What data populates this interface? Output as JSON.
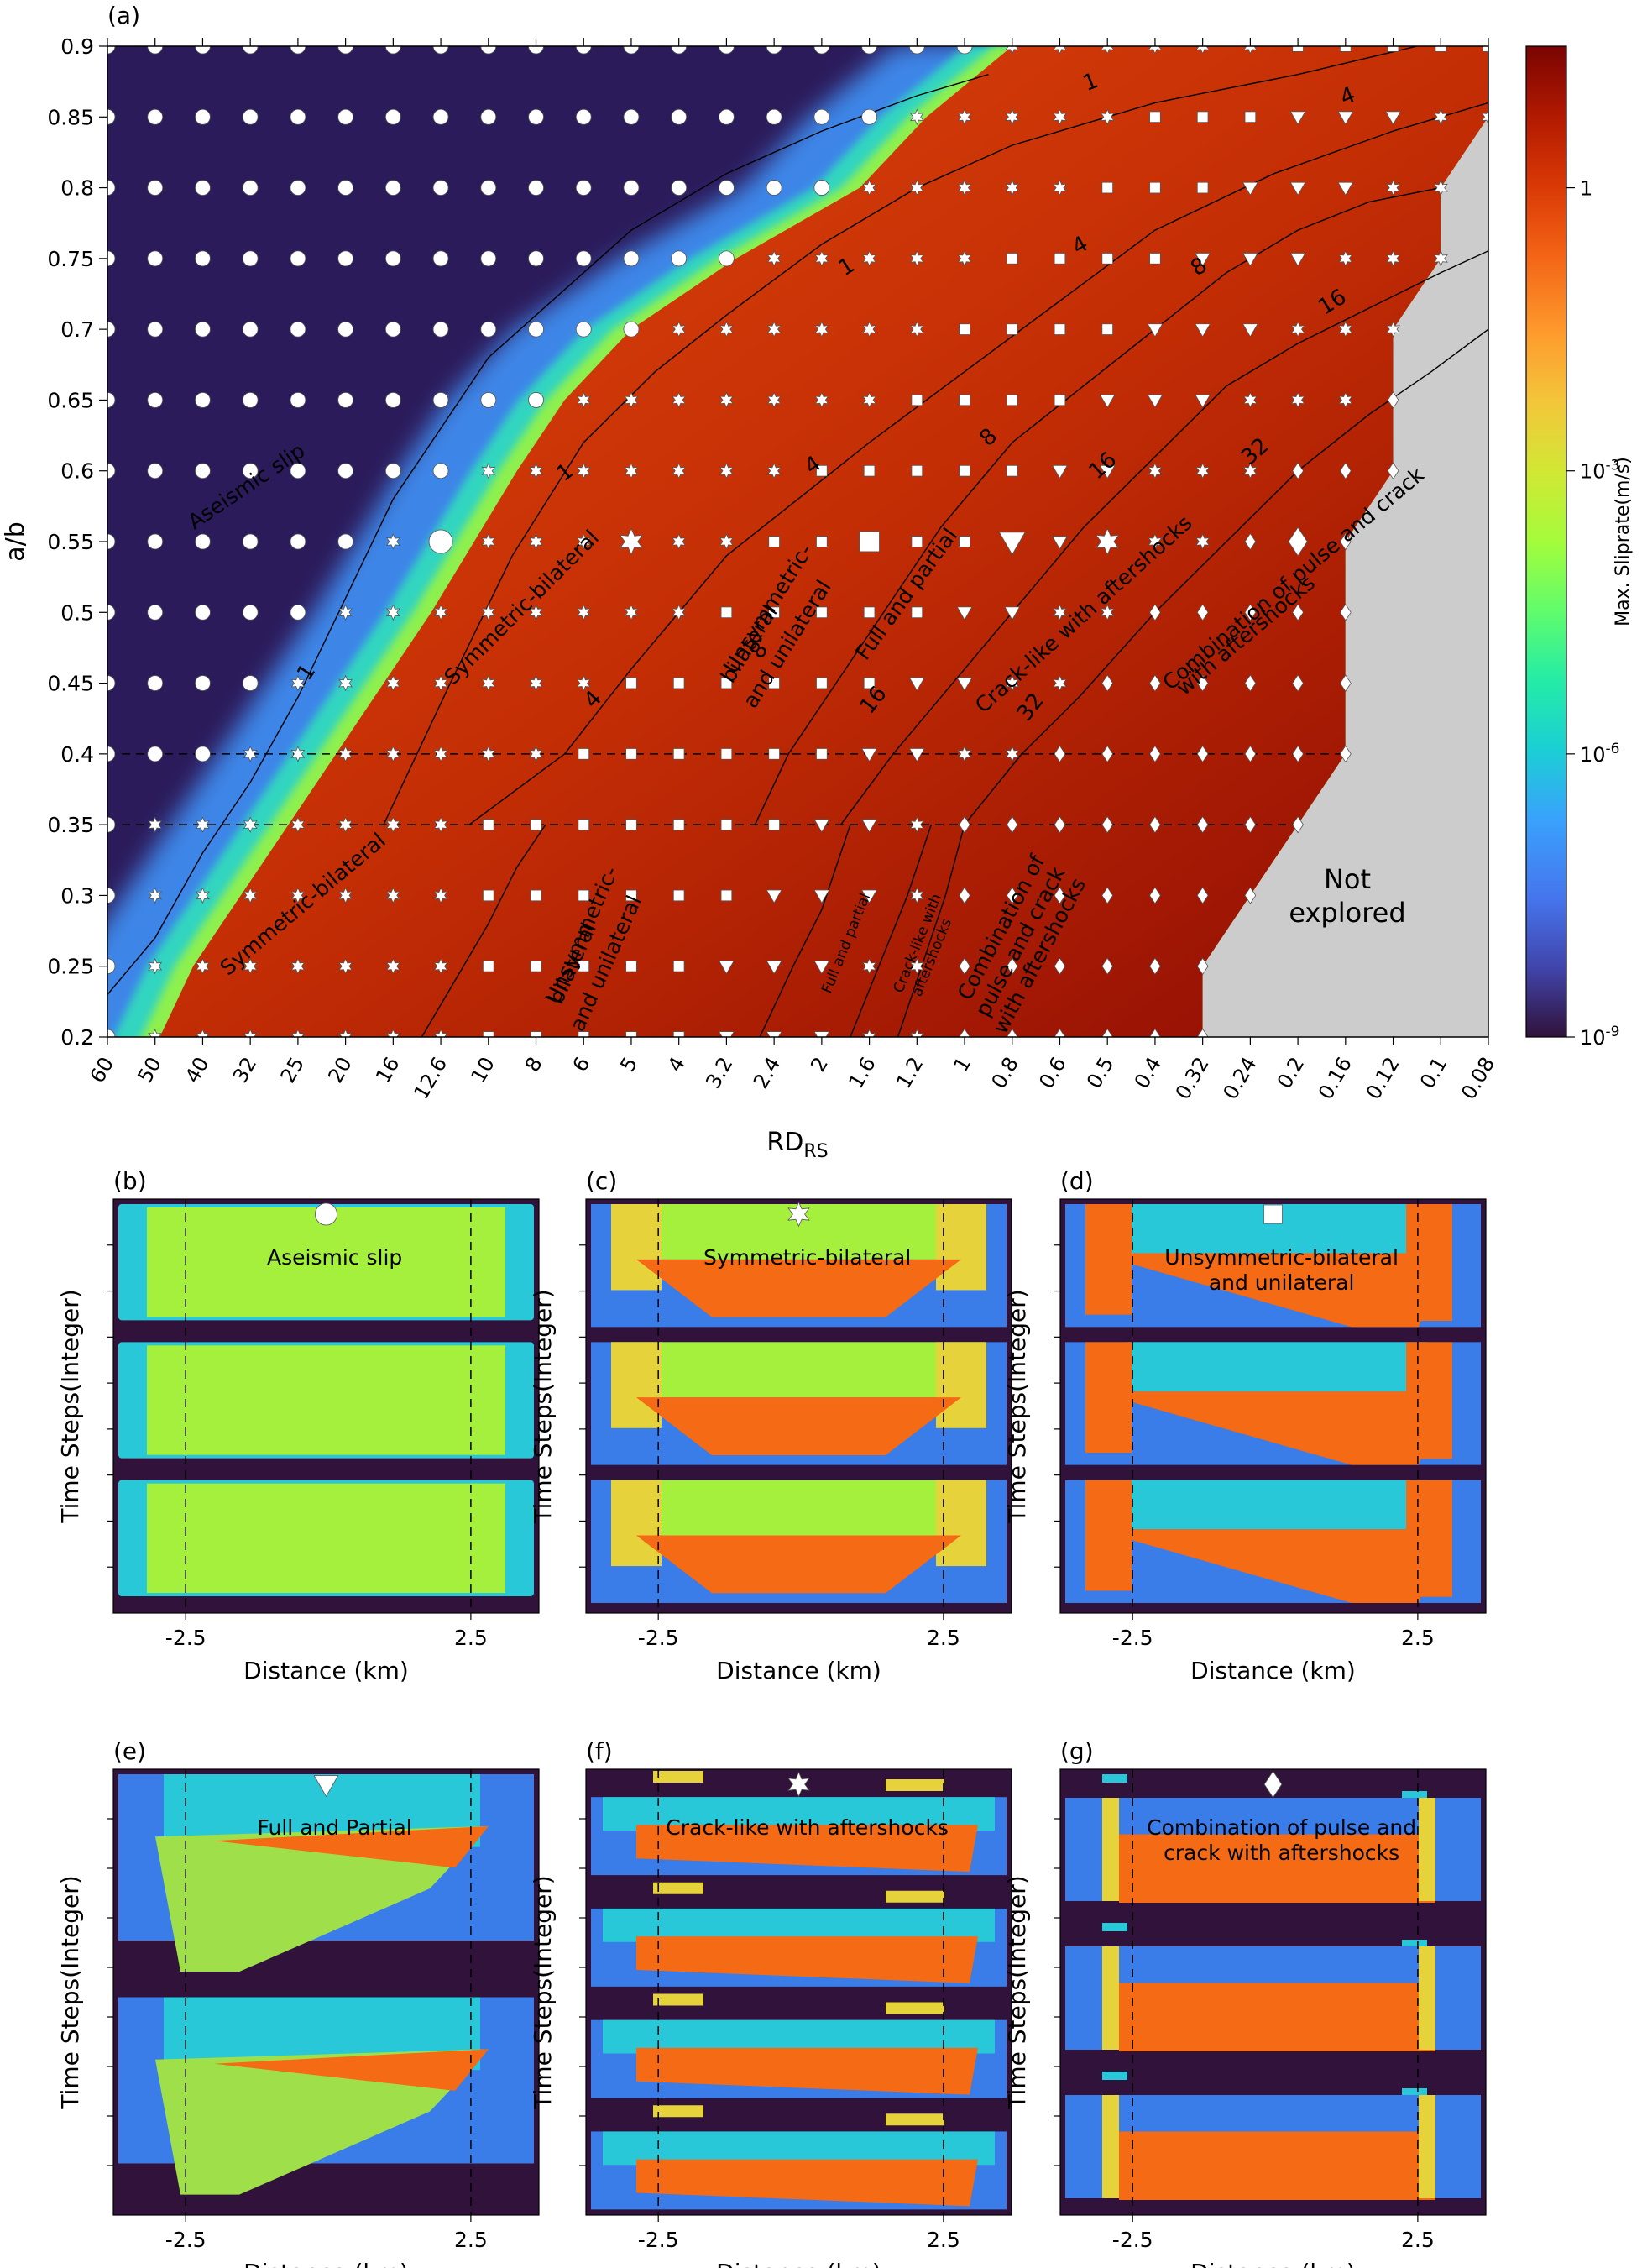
{
  "chart_data": [
    {
      "panel": "(a)",
      "type": "heatmap",
      "xlabel_main": "RD",
      "xlabel_sub": "RS",
      "ylabel": "a/b",
      "x_ticks": [
        "60",
        "50",
        "40",
        "32",
        "25",
        "20",
        "16",
        "12.6",
        "10",
        "8",
        "6",
        "5",
        "4",
        "3.2",
        "2.4",
        "2",
        "1.6",
        "1.2",
        "1",
        "0.8",
        "0.6",
        "0.5",
        "0.4",
        "0.32",
        "0.24",
        "0.2",
        "0.16",
        "0.12",
        "0.1",
        "0.08"
      ],
      "y_ticks": [
        "0.2",
        "0.25",
        "0.3",
        "0.35",
        "0.4",
        "0.45",
        "0.5",
        "0.55",
        "0.6",
        "0.65",
        "0.7",
        "0.75",
        "0.8",
        "0.85",
        "0.9"
      ],
      "ylim": [
        0.2,
        0.9
      ],
      "colorbar": {
        "label": "Max. Sliprate(m/s)",
        "scale": "log",
        "ticks": [
          {
            "base": "1",
            "exp": ""
          },
          {
            "base": "10",
            "exp": "-3"
          },
          {
            "base": "10",
            "exp": "-6"
          },
          {
            "base": "10",
            "exp": "-9"
          }
        ],
        "range_log10": [
          -9,
          1.5
        ]
      },
      "boundary_aseismic_x": [
        1.1,
        1.8,
        2.8,
        3.8,
        4.8,
        5.8,
        6.8,
        7.7,
        8.6,
        9.6,
        11.0,
        13.2,
        15.8,
        17.2,
        19.0
      ],
      "not_explored": {
        "label_line1": "Not",
        "label_line2": "explored",
        "color": "#cccccc",
        "last_explored_x": [
          23,
          23,
          24,
          25,
          26,
          26,
          26,
          26,
          27,
          27,
          27,
          28,
          28,
          29,
          29
        ]
      },
      "dashed_lines_y": [
        0.35,
        0.4
      ],
      "contours": [
        {
          "label": "1",
          "points": [
            [
              0.0,
              0.23
            ],
            [
              1.0,
              0.27
            ],
            [
              2.0,
              0.33
            ],
            [
              3.0,
              0.38
            ],
            [
              4.0,
              0.44
            ],
            [
              5.0,
              0.51
            ],
            [
              6.0,
              0.58
            ],
            [
              7.0,
              0.63
            ],
            [
              8.0,
              0.68
            ],
            [
              9.0,
              0.71
            ],
            [
              11.0,
              0.77
            ],
            [
              13.0,
              0.81
            ],
            [
              15.0,
              0.84
            ],
            [
              17.0,
              0.865
            ],
            [
              18.5,
              0.88
            ]
          ]
        },
        {
          "label": "1",
          "points": [
            [
              5.8,
              0.35
            ],
            [
              7.2,
              0.45
            ],
            [
              8.5,
              0.54
            ],
            [
              10.0,
              0.62
            ],
            [
              11.5,
              0.67
            ],
            [
              13.0,
              0.71
            ],
            [
              15.0,
              0.76
            ],
            [
              17.0,
              0.8
            ],
            [
              19.0,
              0.83
            ],
            [
              22.0,
              0.86
            ],
            [
              25.0,
              0.88
            ],
            [
              27.5,
              0.9
            ]
          ]
        },
        {
          "label": "4",
          "points": [
            [
              7.6,
              0.35
            ],
            [
              9.6,
              0.4
            ],
            [
              11.0,
              0.46
            ],
            [
              13.0,
              0.54
            ],
            [
              14.5,
              0.58
            ],
            [
              16.0,
              0.62
            ],
            [
              18.0,
              0.67
            ],
            [
              20.0,
              0.72
            ],
            [
              22.0,
              0.77
            ],
            [
              24.5,
              0.81
            ],
            [
              27.0,
              0.84
            ],
            [
              29.0,
              0.86
            ]
          ]
        },
        {
          "label": "8",
          "points": [
            [
              13.6,
              0.35
            ],
            [
              14.3,
              0.4
            ],
            [
              15.3,
              0.45
            ],
            [
              16.5,
              0.51
            ],
            [
              17.5,
              0.56
            ],
            [
              19.0,
              0.62
            ],
            [
              20.5,
              0.66
            ],
            [
              22.0,
              0.7
            ],
            [
              23.5,
              0.74
            ],
            [
              25.0,
              0.77
            ],
            [
              26.5,
              0.79
            ],
            [
              28.0,
              0.8
            ]
          ]
        },
        {
          "label": "16",
          "points": [
            [
              15.4,
              0.35
            ],
            [
              16.5,
              0.4
            ],
            [
              17.5,
              0.44
            ],
            [
              19.0,
              0.5
            ],
            [
              20.5,
              0.56
            ],
            [
              22.0,
              0.61
            ],
            [
              23.5,
              0.66
            ],
            [
              25.0,
              0.69
            ],
            [
              26.8,
              0.72
            ],
            [
              28.0,
              0.74
            ],
            [
              29.3,
              0.76
            ]
          ]
        },
        {
          "label": "32",
          "points": [
            [
              18.0,
              0.35
            ],
            [
              19.2,
              0.4
            ],
            [
              20.4,
              0.44
            ],
            [
              22.0,
              0.5
            ],
            [
              23.5,
              0.55
            ],
            [
              25.0,
              0.6
            ],
            [
              26.5,
              0.64
            ],
            [
              27.8,
              0.67
            ],
            [
              29.0,
              0.7
            ]
          ]
        },
        {
          "label": "",
          "points": [
            [
              6.6,
              0.2
            ],
            [
              7.3,
              0.24
            ],
            [
              8.0,
              0.28
            ],
            [
              8.6,
              0.32
            ],
            [
              9.2,
              0.35
            ]
          ]
        },
        {
          "label": "",
          "points": [
            [
              13.7,
              0.2
            ],
            [
              14.4,
              0.25
            ],
            [
              15.0,
              0.29
            ],
            [
              15.6,
              0.35
            ]
          ]
        },
        {
          "label": "",
          "points": [
            [
              15.6,
              0.2
            ],
            [
              16.2,
              0.25
            ],
            [
              16.8,
              0.3
            ],
            [
              17.3,
              0.35
            ]
          ]
        },
        {
          "label": "",
          "points": [
            [
              16.6,
              0.2
            ],
            [
              17.1,
              0.25
            ],
            [
              17.6,
              0.3
            ],
            [
              18.0,
              0.35
            ]
          ]
        }
      ],
      "contour_labels": [
        {
          "text": "1",
          "x": 4.3,
          "y": 0.455,
          "rot": -56
        },
        {
          "text": "1",
          "x": 9.7,
          "y": 0.595,
          "rot": -38
        },
        {
          "text": "1",
          "x": 15.6,
          "y": 0.74,
          "rot": -32
        },
        {
          "text": "1",
          "x": 20.7,
          "y": 0.87,
          "rot": -22
        },
        {
          "text": "4",
          "x": 10.3,
          "y": 0.435,
          "rot": -46
        },
        {
          "text": "4",
          "x": 14.9,
          "y": 0.6,
          "rot": -35
        },
        {
          "text": "4",
          "x": 20.5,
          "y": 0.755,
          "rot": -30
        },
        {
          "text": "4",
          "x": 26.1,
          "y": 0.86,
          "rot": -22
        },
        {
          "text": "8",
          "x": 13.8,
          "y": 0.47,
          "rot": -52
        },
        {
          "text": "8",
          "x": 18.6,
          "y": 0.62,
          "rot": -42
        },
        {
          "text": "8",
          "x": 23.0,
          "y": 0.74,
          "rot": -33
        },
        {
          "text": "16",
          "x": 16.2,
          "y": 0.435,
          "rot": -52
        },
        {
          "text": "16",
          "x": 21.0,
          "y": 0.6,
          "rot": -42
        },
        {
          "text": "16",
          "x": 25.8,
          "y": 0.715,
          "rot": -32
        },
        {
          "text": "32",
          "x": 19.5,
          "y": 0.43,
          "rot": -52
        },
        {
          "text": "32",
          "x": 24.2,
          "y": 0.61,
          "rot": -42
        }
      ],
      "regime_labels": [
        {
          "text": "Aseismic slip",
          "x": 3.0,
          "y": 0.585,
          "rot": -34
        },
        {
          "text": "Symmetric-bilateral",
          "x": 8.8,
          "y": 0.5,
          "rot": -45
        },
        {
          "text": "Symmetric-bilateral",
          "x": 4.2,
          "y": 0.29,
          "rot": -40
        },
        {
          "text": "Unsymmetric-",
          "x": 14.0,
          "y": 0.5,
          "rot": -58
        },
        {
          "text": "bilateral",
          "x": 13.6,
          "y": 0.475,
          "rot": -58
        },
        {
          "text": "and unilateral",
          "x": 14.4,
          "y": 0.475,
          "rot": -58
        },
        {
          "text": "Unsymmetric-",
          "x": 10.1,
          "y": 0.27,
          "rot": -66
        },
        {
          "text": "bilateral",
          "x": 9.9,
          "y": 0.25,
          "rot": -66
        },
        {
          "text": "and unilateral",
          "x": 10.6,
          "y": 0.25,
          "rot": -66
        },
        {
          "text": "Full and partial",
          "x": 16.9,
          "y": 0.51,
          "rot": -54
        },
        {
          "text": "Full and partial",
          "x": 15.6,
          "y": 0.265,
          "rot": -68
        },
        {
          "text": "Crack-like with aftershocks",
          "x": 20.6,
          "y": 0.495,
          "rot": -42
        },
        {
          "text": "Crack-like with",
          "x": 17.1,
          "y": 0.265,
          "rot": -68
        },
        {
          "text": "aftershocks",
          "x": 17.4,
          "y": 0.255,
          "rot": -68
        },
        {
          "text": "Combination of",
          "x": 18.9,
          "y": 0.275,
          "rot": -62
        },
        {
          "text": "pulse and crack",
          "x": 19.3,
          "y": 0.265,
          "rot": -62
        },
        {
          "text": "with aftershocks",
          "x": 19.7,
          "y": 0.255,
          "rot": -62
        },
        {
          "text": "Combination of pulse and crack",
          "x": 25.0,
          "y": 0.52,
          "rot": -40
        },
        {
          "text": "with aftershocks",
          "x": 24.0,
          "y": 0.48,
          "rot": -40
        }
      ],
      "marker_regions": {
        "note": "per row: start index of Symmetric, Unsymmetric, Full&Partial, Crack-like, Combination",
        "rows": [
          [
            1,
            8,
            13,
            16,
            18
          ],
          [
            1,
            8,
            13,
            16,
            18
          ],
          [
            1,
            8,
            14,
            17,
            18
          ],
          [
            1,
            8,
            15,
            17,
            18
          ],
          [
            3,
            10,
            16,
            18,
            20
          ],
          [
            4,
            11,
            17,
            19,
            21
          ],
          [
            5,
            13,
            18,
            20,
            22
          ],
          [
            6,
            14,
            19,
            21,
            24
          ],
          [
            8,
            15,
            20,
            22,
            25
          ],
          [
            10,
            17,
            21,
            24,
            27
          ],
          [
            12,
            18,
            22,
            25,
            28
          ],
          [
            14,
            19,
            23,
            26,
            29
          ],
          [
            16,
            21,
            24,
            27,
            30
          ],
          [
            17,
            22,
            25,
            28,
            30
          ],
          [
            19,
            25,
            30,
            30,
            30
          ]
        ]
      },
      "highlighted_markers": [
        {
          "x": 7,
          "y": 0.55,
          "regime": "circle"
        },
        {
          "x": 11,
          "y": 0.55,
          "regime": "star"
        },
        {
          "x": 16,
          "y": 0.55,
          "regime": "square"
        },
        {
          "x": 19,
          "y": 0.55,
          "regime": "triangle"
        },
        {
          "x": 21,
          "y": 0.55,
          "regime": "star"
        },
        {
          "x": 25,
          "y": 0.55,
          "regime": "diamond"
        }
      ]
    },
    {
      "panel": "(b)",
      "type": "heatmap",
      "marker": "circle",
      "label": "Aseismic slip",
      "xticks": [
        "-2.5",
        "2.5"
      ],
      "xlabel": "Distance (km)",
      "ylabel": "Time Steps(Integer)"
    },
    {
      "panel": "(c)",
      "type": "heatmap",
      "marker": "star",
      "label": "Symmetric-bilateral",
      "xticks": [
        "-2.5",
        "2.5"
      ],
      "xlabel": "Distance (km)",
      "ylabel": "Time Steps(Integer)"
    },
    {
      "panel": "(d)",
      "type": "heatmap",
      "marker": "square",
      "label": "Unsymmetric-bilateral",
      "label2": "and unilateral",
      "xticks": [
        "-2.5",
        "2.5"
      ],
      "xlabel": "Distance (km)",
      "ylabel": "Time Steps(Integer)"
    },
    {
      "panel": "(e)",
      "type": "heatmap",
      "marker": "triangle",
      "label": "Full and Partial",
      "xticks": [
        "-2.5",
        "2.5"
      ],
      "xlabel": "Distance (km)",
      "ylabel": "Time Steps(Integer)"
    },
    {
      "panel": "(f)",
      "type": "heatmap",
      "marker": "star",
      "label": "Crack-like with aftershocks",
      "xticks": [
        "-2.5",
        "2.5"
      ],
      "xlabel": "Distance (km)",
      "ylabel": "Time Steps(Integer)"
    },
    {
      "panel": "(g)",
      "type": "heatmap",
      "marker": "diamond",
      "label": "Combination of pulse and",
      "label2": "crack with aftershocks",
      "xticks": [
        "-2.5",
        "2.5"
      ],
      "xlabel": "Distance (km)",
      "ylabel": "Time Steps(Integer)"
    }
  ]
}
